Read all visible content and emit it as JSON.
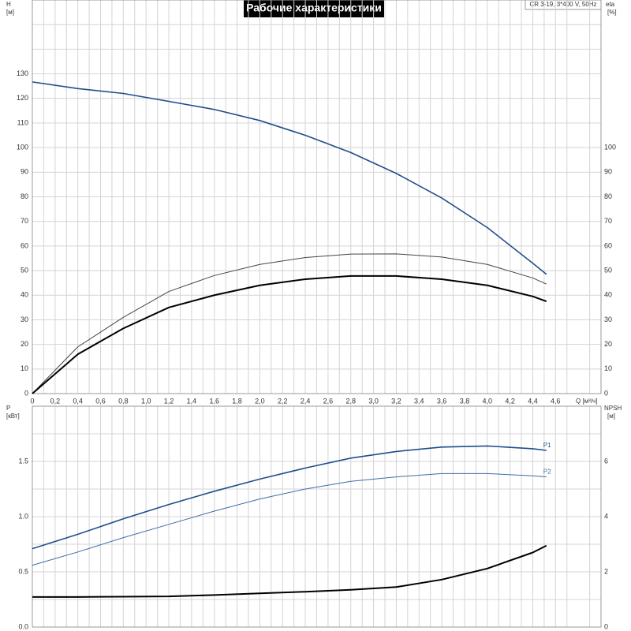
{
  "title": "Рабочие характеристики",
  "model": "CR 3-19, 3*400 V, 50Hz",
  "chart_data": [
    {
      "type": "line",
      "xlabel": "Q [м³/ч]",
      "ylabel": "H",
      "yunit": "[м]",
      "y2label": "eta",
      "y2unit": "[%]",
      "x": [
        0,
        0.4,
        0.8,
        1.2,
        1.6,
        2.0,
        2.4,
        2.8,
        3.2,
        3.6,
        4.0,
        4.4,
        4.52
      ],
      "xlim": [
        0,
        5.0
      ],
      "xticks": [
        0,
        {
          "value": 0.2,
          "label": "0,2"
        },
        {
          "value": 0.4,
          "label": "0,4"
        },
        {
          "value": 0.6,
          "label": "0,6"
        },
        {
          "value": 0.8,
          "label": "0,8"
        },
        {
          "value": 1.0,
          "label": "1,0"
        },
        {
          "value": 1.2,
          "label": "1,2"
        },
        {
          "value": 1.4,
          "label": "1,4"
        },
        {
          "value": 1.6,
          "label": "1,6"
        },
        {
          "value": 1.8,
          "label": "1,8"
        },
        {
          "value": 2.0,
          "label": "2,0"
        },
        {
          "value": 2.2,
          "label": "2,2"
        },
        {
          "value": 2.4,
          "label": "2,4"
        },
        {
          "value": 2.6,
          "label": "2,6"
        },
        {
          "value": 2.8,
          "label": "2,8"
        },
        {
          "value": 3.0,
          "label": "3,0"
        },
        {
          "value": 3.2,
          "label": "3,2"
        },
        {
          "value": 3.4,
          "label": "3,4"
        },
        {
          "value": 3.6,
          "label": "3,6"
        },
        {
          "value": 3.8,
          "label": "3,8"
        },
        {
          "value": 4.0,
          "label": "4,0"
        },
        {
          "value": 4.2,
          "label": "4,2"
        },
        {
          "value": 4.4,
          "label": "4,4"
        },
        {
          "value": 4.6,
          "label": "4,6"
        }
      ],
      "ylim": [
        0,
        160
      ],
      "yticks": [
        0,
        10,
        20,
        30,
        40,
        50,
        60,
        70,
        80,
        90,
        100,
        110,
        120,
        130
      ],
      "y2lim": [
        0,
        160
      ],
      "y2ticks": [
        0,
        10,
        20,
        30,
        40,
        50,
        60,
        70,
        80,
        90,
        100
      ],
      "grid": true,
      "series": [
        {
          "color": "#1f4e8c",
          "values": [
            126.7,
            124,
            122,
            118.8,
            115.5,
            111,
            105,
            98,
            89.5,
            79.5,
            67.5,
            53,
            48.5
          ]
        },
        {
          "color": "#444444",
          "axis": "y2",
          "values": [
            0,
            19,
            31,
            41.5,
            48,
            52.5,
            55.3,
            56.7,
            56.8,
            55.5,
            52.5,
            47,
            44.5
          ]
        },
        {
          "color": "#000000",
          "axis": "y2",
          "values": [
            0,
            16,
            26.5,
            35,
            40,
            44,
            46.5,
            47.8,
            47.8,
            46.5,
            44,
            39.5,
            37.5
          ]
        }
      ]
    },
    {
      "type": "line",
      "ylabel": "P",
      "yunit": "[кВт]",
      "y2label": "NPSH",
      "y2unit": "[м]",
      "x": [
        0,
        0.4,
        0.8,
        1.2,
        1.6,
        2.0,
        2.4,
        2.8,
        3.2,
        3.6,
        4.0,
        4.4,
        4.52
      ],
      "xlim": [
        0,
        5.0
      ],
      "ylim": [
        0,
        2.0
      ],
      "yticks": [
        {
          "value": 0,
          "label": "0.0"
        },
        0.5,
        {
          "value": 1,
          "label": "1.0"
        },
        1.5
      ],
      "y2lim": [
        0,
        8
      ],
      "y2ticks": [
        0,
        2,
        4,
        6
      ],
      "grid": true,
      "series": [
        {
          "name": "P1",
          "color": "#1f4e8c",
          "values": [
            0.71,
            0.84,
            0.98,
            1.11,
            1.23,
            1.34,
            1.44,
            1.53,
            1.59,
            1.63,
            1.64,
            1.615,
            1.6
          ]
        },
        {
          "name": "P2",
          "color": "#3a6ea5",
          "values": [
            0.56,
            0.68,
            0.81,
            0.93,
            1.05,
            1.16,
            1.25,
            1.32,
            1.36,
            1.39,
            1.39,
            1.37,
            1.36
          ]
        },
        {
          "color": "#000000",
          "axis": "y2",
          "values": [
            1.09,
            1.09,
            1.1,
            1.11,
            1.16,
            1.22,
            1.28,
            1.35,
            1.45,
            1.72,
            2.12,
            2.7,
            2.95
          ]
        }
      ]
    }
  ]
}
